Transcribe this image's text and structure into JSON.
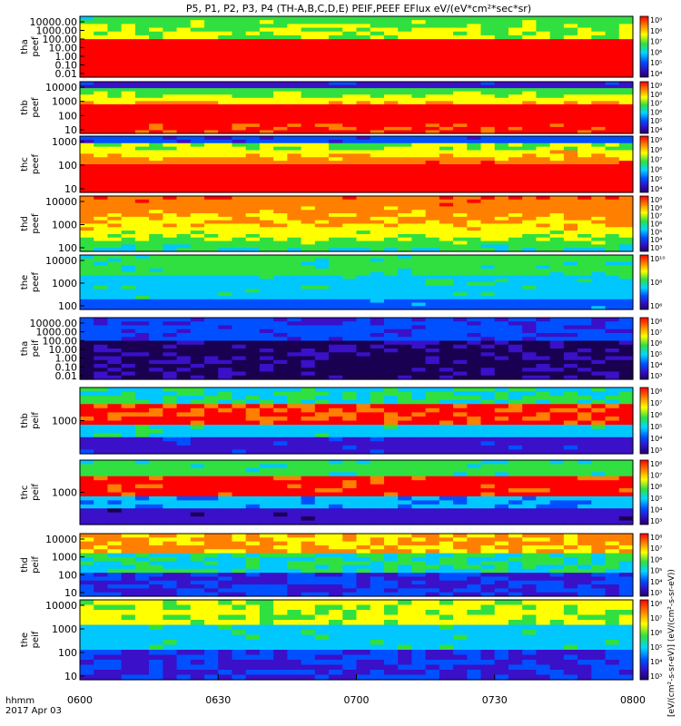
{
  "title": "P5, P1, P2, P3, P4 (TH-A,B,C,D,E) PEIF,PEEF EFlux eV/(eV*cm²*sec*sr)",
  "colorbar_unit_text": "[eV/(cm²-s-sr-eV)] (eV/(cm²-s-sr-eV))",
  "time_axis": {
    "label_line1": "hhmm",
    "label_line2": "2017 Apr 03",
    "tick_labels": [
      "0600",
      "0630",
      "0700",
      "0730",
      "0800"
    ]
  },
  "chart_data": {
    "type": "heatmap",
    "title": "P5, P1, P2, P3, P4 (TH-A,B,C,D,E) PEIF,PEEF EFlux eV/(eV*cm²*sec*sr)",
    "x_range": [
      "0600",
      "0800"
    ],
    "x_date": "2017 Apr 03",
    "colormap": "rainbow (black-purple-blue-cyan-green-yellow-red)",
    "panels": [
      {
        "probe": "tha",
        "species": "peef",
        "y_ticks": [
          "10000.00",
          "1000.00",
          "100.00",
          "10.00",
          "1.00",
          "0.10",
          "0.01"
        ],
        "y_log": true,
        "cbar_ticks": [
          "10⁴",
          "10⁵",
          "10⁶",
          "10⁷",
          "10⁸",
          "10⁹"
        ]
      },
      {
        "probe": "thb",
        "species": "peef",
        "y_ticks": [
          "10000",
          "1000",
          "100",
          "10"
        ],
        "y_log": true,
        "cbar_ticks": [
          "10⁴",
          "10⁵",
          "10⁶",
          "10⁷",
          "10⁸",
          "10⁹"
        ]
      },
      {
        "probe": "thc",
        "species": "peef",
        "y_ticks": [
          "1000",
          "100",
          "10"
        ],
        "y_log": true,
        "cbar_ticks": [
          "10⁴",
          "10⁵",
          "10⁶",
          "10⁷",
          "10⁸",
          "10⁹"
        ]
      },
      {
        "probe": "thd",
        "species": "peef",
        "y_ticks": [
          "10000",
          "1000",
          "100"
        ],
        "y_log": true,
        "cbar_ticks": [
          "10³",
          "10⁴",
          "10⁵",
          "10⁶",
          "10⁷",
          "10⁸",
          "10⁹"
        ]
      },
      {
        "probe": "the",
        "species": "peef",
        "y_ticks": [
          "10000",
          "1000",
          "100"
        ],
        "y_log": true,
        "cbar_ticks": [
          "10⁶",
          "10⁸",
          "10¹⁰"
        ]
      },
      {
        "probe": "tha",
        "species": "peif",
        "y_ticks": [
          "10000.00",
          "1000.00",
          "100.00",
          "10.00",
          "1.00",
          "0.10",
          "0.01"
        ],
        "y_log": true,
        "cbar_ticks": [
          "10³",
          "10⁴",
          "10⁵",
          "10⁶",
          "10⁷",
          "10⁸"
        ]
      },
      {
        "probe": "thb",
        "species": "peif",
        "y_ticks": [
          "1000"
        ],
        "y_log": true,
        "cbar_ticks": [
          "10³",
          "10⁴",
          "10⁵",
          "10⁶",
          "10⁷",
          "10⁸"
        ]
      },
      {
        "probe": "thc",
        "species": "peif",
        "y_ticks": [
          "1000"
        ],
        "y_log": true,
        "cbar_ticks": [
          "10³",
          "10⁴",
          "10⁵",
          "10⁶",
          "10⁷",
          "10⁸"
        ]
      },
      {
        "probe": "thd",
        "species": "peif",
        "y_ticks": [
          "10000",
          "1000",
          "100",
          "10"
        ],
        "y_log": true,
        "cbar_ticks": [
          "10³",
          "10⁴",
          "10⁵",
          "10⁶",
          "10⁷",
          "10⁸"
        ]
      },
      {
        "probe": "the",
        "species": "peif",
        "y_ticks": [
          "10000",
          "1000",
          "100",
          "10"
        ],
        "y_log": true,
        "cbar_ticks": [
          "10³",
          "10⁴",
          "10⁵",
          "10⁶",
          "10⁷",
          "10⁸"
        ]
      }
    ]
  }
}
